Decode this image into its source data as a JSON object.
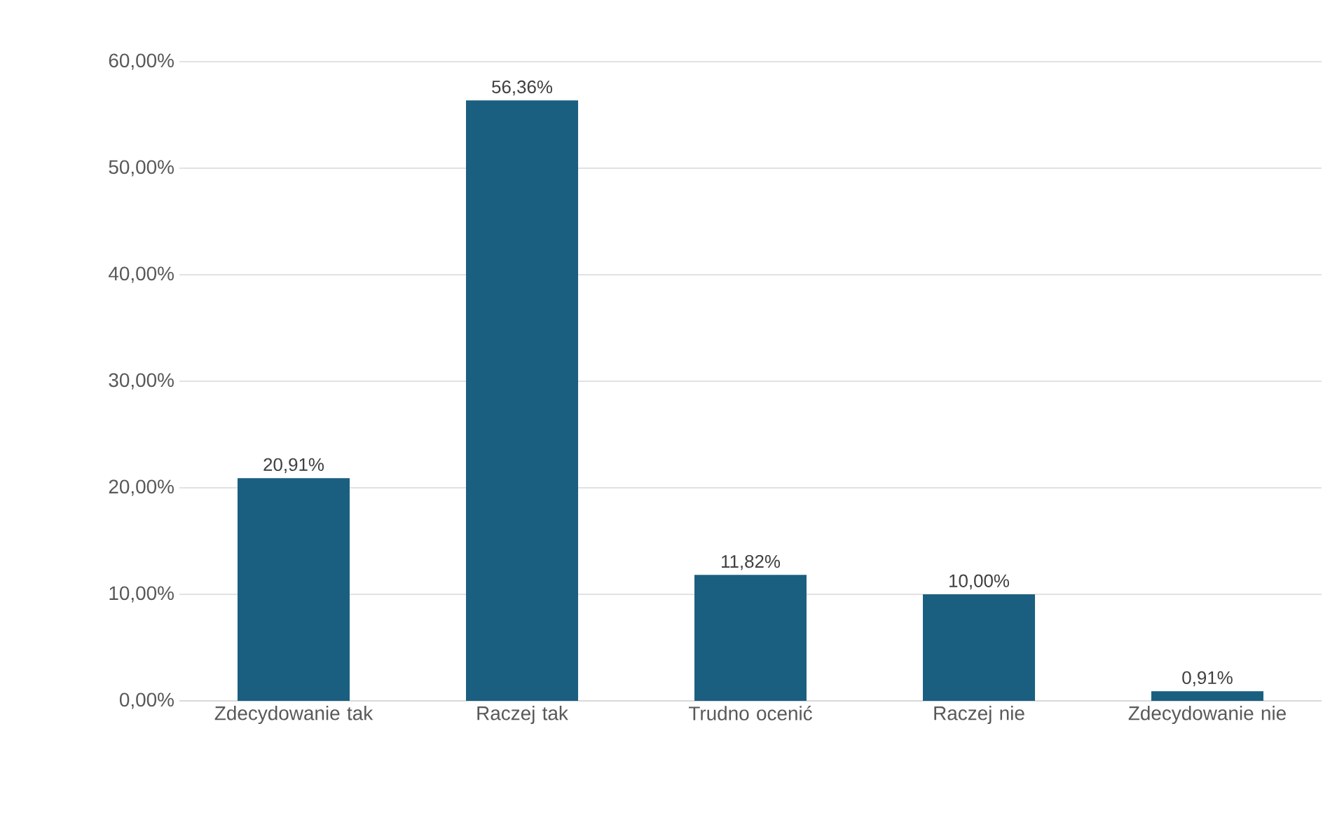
{
  "chart_data": {
    "type": "bar",
    "categories": [
      "Zdecydowanie tak",
      "Raczej tak",
      "Trudno ocenić",
      "Raczej nie",
      "Zdecydowanie nie"
    ],
    "values": [
      20.91,
      56.36,
      11.82,
      10.0,
      0.91
    ],
    "value_labels": [
      "20,91%",
      "56,36%",
      "11,82%",
      "10,00%",
      "0,91%"
    ],
    "color": "#1b5f80",
    "ylim": [
      0,
      60
    ],
    "yticks": [
      {
        "value": 0,
        "label": "0,00%"
      },
      {
        "value": 10,
        "label": "10,00%"
      },
      {
        "value": 20,
        "label": "20,00%"
      },
      {
        "value": 30,
        "label": "30,00%"
      },
      {
        "value": 40,
        "label": "40,00%"
      },
      {
        "value": 50,
        "label": "50,00%"
      },
      {
        "value": 60,
        "label": "60,00%"
      }
    ],
    "grid": "y"
  }
}
